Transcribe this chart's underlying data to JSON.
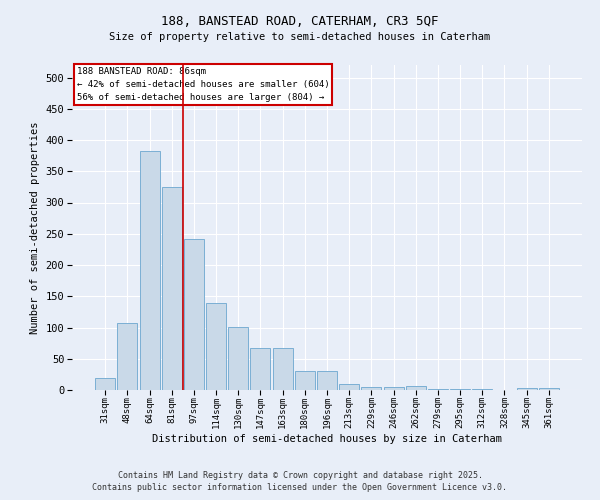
{
  "title1": "188, BANSTEAD ROAD, CATERHAM, CR3 5QF",
  "title2": "Size of property relative to semi-detached houses in Caterham",
  "xlabel": "Distribution of semi-detached houses by size in Caterham",
  "ylabel": "Number of semi-detached properties",
  "categories": [
    "31sqm",
    "48sqm",
    "64sqm",
    "81sqm",
    "97sqm",
    "114sqm",
    "130sqm",
    "147sqm",
    "163sqm",
    "180sqm",
    "196sqm",
    "213sqm",
    "229sqm",
    "246sqm",
    "262sqm",
    "279sqm",
    "295sqm",
    "312sqm",
    "328sqm",
    "345sqm",
    "361sqm"
  ],
  "values": [
    20,
    108,
    383,
    325,
    242,
    140,
    101,
    68,
    68,
    30,
    30,
    10,
    5,
    5,
    7,
    1,
    1,
    1,
    0,
    3,
    3
  ],
  "bar_color": "#c9d9e8",
  "bar_edge_color": "#7bafd4",
  "background_color": "#e8eef8",
  "grid_color": "#ffffff",
  "annotation_box_color": "#ffffff",
  "annotation_box_edge": "#cc0000",
  "red_line_x": 3.5,
  "annotation_text_line1": "188 BANSTEAD ROAD: 86sqm",
  "annotation_text_line2": "← 42% of semi-detached houses are smaller (604)",
  "annotation_text_line3": "56% of semi-detached houses are larger (804) →",
  "footer": "Contains HM Land Registry data © Crown copyright and database right 2025.\nContains public sector information licensed under the Open Government Licence v3.0.",
  "ylim": [
    0,
    520
  ],
  "yticks": [
    0,
    50,
    100,
    150,
    200,
    250,
    300,
    350,
    400,
    450,
    500
  ]
}
